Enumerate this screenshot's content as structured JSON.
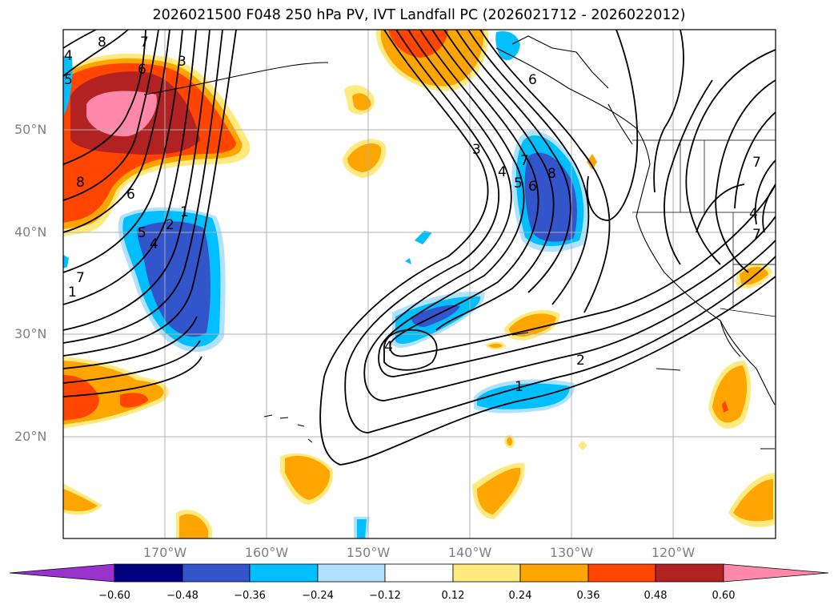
{
  "title": "2026021500 F048 250 hPa PV, IVT Landfall PC (2026021712 - 2026022012)",
  "map": {
    "lat_labels": [
      "50°N",
      "40°N",
      "30°N",
      "20°N"
    ],
    "lon_labels": [
      "170°W",
      "160°W",
      "150°W",
      "140°W",
      "130°W",
      "120°W"
    ],
    "contour_labels": [
      "8",
      "7",
      "6",
      "3",
      "5",
      "4",
      "6",
      "1",
      "2",
      "5",
      "4",
      "8",
      "7",
      "1",
      "3",
      "4",
      "5",
      "6",
      "7",
      "8",
      "6",
      "4",
      "7",
      "2",
      "1",
      "4",
      "7"
    ]
  },
  "colorbar": {
    "ticks": [
      "−0.60",
      "−0.48",
      "−0.36",
      "−0.24",
      "−0.12",
      "0.12",
      "0.24",
      "0.36",
      "0.48",
      "0.60"
    ],
    "colors": [
      "#9933cc",
      "#000080",
      "#3355cc",
      "#00bfff",
      "#b0e2ff",
      "#ffffff",
      "#ffea80",
      "#ffa500",
      "#ff4500",
      "#b22222",
      "#ff88aa"
    ]
  }
}
